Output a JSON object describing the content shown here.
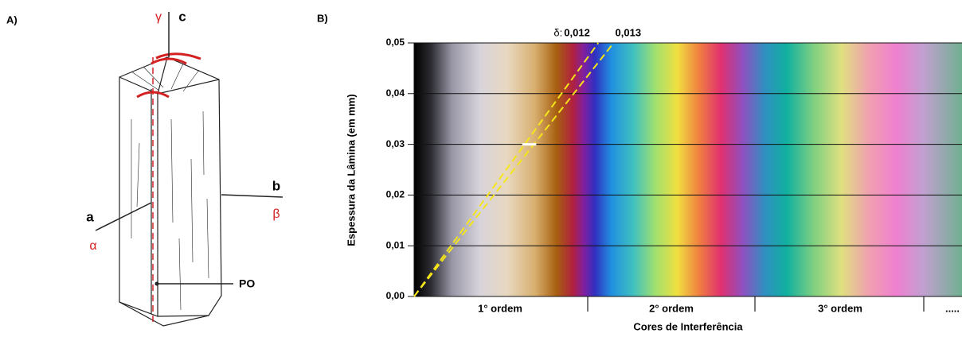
{
  "panel_a": {
    "label": "A)",
    "axes": [
      {
        "name": "c",
        "index": "γ"
      },
      {
        "name": "b",
        "index": "β"
      },
      {
        "name": "a",
        "index": "α"
      }
    ],
    "point": "PO"
  },
  "panel_b": {
    "label": "B)",
    "y_axis_label": "Espessura da Lâmina (em mm)",
    "x_axis_label": "Cores de Interferência",
    "ylim": [
      0,
      0.05
    ],
    "yticks": [
      {
        "value": 0,
        "label": "0,00"
      },
      {
        "value": 0.01,
        "label": "0,01"
      },
      {
        "value": 0.02,
        "label": "0,02"
      },
      {
        "value": 0.03,
        "label": "0,03"
      },
      {
        "value": 0.04,
        "label": "0,04"
      },
      {
        "value": 0.05,
        "label": "0,05"
      }
    ],
    "orders": [
      "1° ordem",
      "2° ordem",
      "3° ordem",
      "....."
    ],
    "birefringence_symbol": "δ:",
    "birefringence": [
      {
        "value": 0.012,
        "label": "0,012"
      },
      {
        "value": 0.013,
        "label": "0,013"
      }
    ],
    "marked_thickness": 0.03
  }
}
